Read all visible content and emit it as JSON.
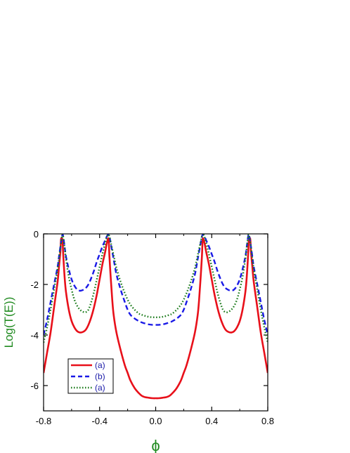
{
  "chart_data": {
    "type": "line",
    "xlabel": "ϕ",
    "ylabel": "Log(T(E))",
    "xlim": [
      -0.8,
      0.8
    ],
    "ylim": [
      -7.0,
      0.0
    ],
    "xticks": [
      -0.8,
      -0.4,
      0.0,
      0.4,
      0.8
    ],
    "xtick_labels": [
      "-0.8",
      "-0.4",
      "0.0",
      "0.4",
      "0.8"
    ],
    "yticks": [
      -6,
      -4,
      -2,
      0
    ],
    "ytick_labels": [
      "-6",
      "-4",
      "-2",
      "0"
    ],
    "label_color": "#1f8a1f",
    "legend_position": "bottom-left",
    "series": [
      {
        "name": "(a)",
        "color": "#e8101a",
        "dash": "solid",
        "x": [
          -0.8,
          -0.775,
          -0.75,
          -0.725,
          -0.7,
          -0.69,
          -0.68,
          -0.675,
          -0.665,
          -0.66,
          -0.65,
          -0.64,
          -0.62,
          -0.6,
          -0.58,
          -0.56,
          -0.54,
          -0.52,
          -0.5,
          -0.48,
          -0.46,
          -0.44,
          -0.42,
          -0.4,
          -0.38,
          -0.36,
          -0.35,
          -0.34,
          -0.335,
          -0.33,
          -0.32,
          -0.31,
          -0.3,
          -0.28,
          -0.25,
          -0.22,
          -0.2,
          -0.18,
          -0.15,
          -0.12,
          -0.1,
          -0.08,
          -0.05,
          -0.02,
          0.0,
          0.02,
          0.05,
          0.08,
          0.1,
          0.12,
          0.15,
          0.18,
          0.2,
          0.22,
          0.25,
          0.28,
          0.3,
          0.31,
          0.32,
          0.33,
          0.335,
          0.34,
          0.35,
          0.36,
          0.38,
          0.4,
          0.42,
          0.44,
          0.46,
          0.48,
          0.5,
          0.52,
          0.54,
          0.56,
          0.58,
          0.6,
          0.62,
          0.64,
          0.65,
          0.66,
          0.665,
          0.675,
          0.68,
          0.69,
          0.7,
          0.725,
          0.75,
          0.775,
          0.8
        ],
        "y": [
          -5.5,
          -4.7,
          -3.9,
          -2.9,
          -1.9,
          -1.3,
          -0.7,
          -0.2,
          -0.25,
          -0.8,
          -1.7,
          -2.3,
          -3.0,
          -3.45,
          -3.7,
          -3.85,
          -3.9,
          -3.88,
          -3.8,
          -3.6,
          -3.3,
          -2.9,
          -2.4,
          -1.8,
          -1.2,
          -0.7,
          -0.4,
          -0.2,
          -0.25,
          -0.9,
          -1.8,
          -2.6,
          -3.2,
          -3.9,
          -4.6,
          -5.2,
          -5.5,
          -5.8,
          -6.1,
          -6.3,
          -6.4,
          -6.45,
          -6.48,
          -6.5,
          -6.5,
          -6.5,
          -6.48,
          -6.45,
          -6.4,
          -6.3,
          -6.1,
          -5.8,
          -5.5,
          -5.2,
          -4.6,
          -3.9,
          -3.2,
          -2.6,
          -1.8,
          -0.9,
          -0.25,
          -0.2,
          -0.4,
          -0.7,
          -1.2,
          -1.8,
          -2.4,
          -2.9,
          -3.3,
          -3.6,
          -3.8,
          -3.88,
          -3.9,
          -3.85,
          -3.7,
          -3.45,
          -3.0,
          -2.3,
          -1.7,
          -0.8,
          -0.25,
          -0.2,
          -0.7,
          -1.3,
          -1.9,
          -2.9,
          -3.9,
          -4.7,
          -5.5
        ]
      },
      {
        "name": "(b)",
        "color": "#1a1ae6",
        "dash": "dashed",
        "x": [
          -0.8,
          -0.775,
          -0.75,
          -0.725,
          -0.7,
          -0.69,
          -0.68,
          -0.67,
          -0.665,
          -0.66,
          -0.65,
          -0.64,
          -0.62,
          -0.6,
          -0.58,
          -0.56,
          -0.54,
          -0.52,
          -0.5,
          -0.48,
          -0.46,
          -0.44,
          -0.42,
          -0.4,
          -0.38,
          -0.36,
          -0.35,
          -0.34,
          -0.33,
          -0.32,
          -0.3,
          -0.28,
          -0.25,
          -0.22,
          -0.2,
          -0.18,
          -0.15,
          -0.12,
          -0.1,
          -0.05,
          0.0,
          0.05,
          0.1,
          0.12,
          0.15,
          0.18,
          0.2,
          0.22,
          0.25,
          0.28,
          0.3,
          0.32,
          0.33,
          0.34,
          0.35,
          0.36,
          0.38,
          0.4,
          0.42,
          0.44,
          0.46,
          0.48,
          0.5,
          0.52,
          0.54,
          0.56,
          0.58,
          0.6,
          0.62,
          0.64,
          0.65,
          0.66,
          0.665,
          0.67,
          0.68,
          0.69,
          0.7,
          0.725,
          0.75,
          0.775,
          0.8
        ],
        "y": [
          -4.0,
          -3.4,
          -2.7,
          -2.0,
          -1.3,
          -0.9,
          -0.5,
          -0.15,
          -0.02,
          -0.1,
          -0.5,
          -0.9,
          -1.4,
          -1.8,
          -2.05,
          -2.2,
          -2.25,
          -2.22,
          -2.15,
          -2.0,
          -1.75,
          -1.45,
          -1.1,
          -0.8,
          -0.5,
          -0.25,
          -0.12,
          -0.03,
          -0.1,
          -0.4,
          -1.0,
          -1.6,
          -2.2,
          -2.7,
          -3.0,
          -3.2,
          -3.35,
          -3.45,
          -3.5,
          -3.58,
          -3.6,
          -3.58,
          -3.5,
          -3.45,
          -3.35,
          -3.2,
          -3.0,
          -2.7,
          -2.2,
          -1.6,
          -1.0,
          -0.4,
          -0.1,
          -0.03,
          -0.12,
          -0.25,
          -0.5,
          -0.8,
          -1.1,
          -1.45,
          -1.75,
          -2.0,
          -2.15,
          -2.22,
          -2.25,
          -2.2,
          -2.05,
          -1.8,
          -1.4,
          -0.9,
          -0.5,
          -0.1,
          -0.02,
          -0.15,
          -0.5,
          -0.9,
          -1.3,
          -2.0,
          -2.7,
          -3.4,
          -4.0
        ]
      },
      {
        "name": "(a)",
        "color": "#1a7a1a",
        "dash": "dotted",
        "x": [
          -0.8,
          -0.775,
          -0.75,
          -0.725,
          -0.7,
          -0.69,
          -0.68,
          -0.67,
          -0.665,
          -0.66,
          -0.65,
          -0.64,
          -0.62,
          -0.6,
          -0.58,
          -0.56,
          -0.54,
          -0.52,
          -0.5,
          -0.48,
          -0.46,
          -0.44,
          -0.42,
          -0.4,
          -0.38,
          -0.36,
          -0.35,
          -0.34,
          -0.33,
          -0.32,
          -0.3,
          -0.28,
          -0.25,
          -0.22,
          -0.2,
          -0.18,
          -0.15,
          -0.12,
          -0.1,
          -0.05,
          0.0,
          0.05,
          0.1,
          0.12,
          0.15,
          0.18,
          0.2,
          0.22,
          0.25,
          0.28,
          0.3,
          0.32,
          0.33,
          0.34,
          0.35,
          0.36,
          0.38,
          0.4,
          0.42,
          0.44,
          0.46,
          0.48,
          0.5,
          0.52,
          0.54,
          0.56,
          0.58,
          0.6,
          0.62,
          0.64,
          0.65,
          0.66,
          0.665,
          0.67,
          0.68,
          0.69,
          0.7,
          0.725,
          0.75,
          0.775,
          0.8
        ],
        "y": [
          -4.3,
          -3.7,
          -3.0,
          -2.2,
          -1.4,
          -1.0,
          -0.55,
          -0.15,
          -0.02,
          -0.1,
          -0.55,
          -1.0,
          -1.7,
          -2.2,
          -2.6,
          -2.85,
          -3.0,
          -3.08,
          -3.1,
          -3.0,
          -2.7,
          -2.3,
          -1.8,
          -1.3,
          -0.8,
          -0.35,
          -0.15,
          -0.03,
          -0.1,
          -0.35,
          -0.85,
          -1.35,
          -1.9,
          -2.35,
          -2.6,
          -2.8,
          -3.0,
          -3.15,
          -3.2,
          -3.28,
          -3.3,
          -3.28,
          -3.2,
          -3.15,
          -3.0,
          -2.8,
          -2.6,
          -2.35,
          -1.9,
          -1.35,
          -0.85,
          -0.35,
          -0.1,
          -0.03,
          -0.15,
          -0.35,
          -0.8,
          -1.3,
          -1.8,
          -2.3,
          -2.7,
          -3.0,
          -3.1,
          -3.08,
          -3.0,
          -2.85,
          -2.6,
          -2.2,
          -1.7,
          -1.0,
          -0.55,
          -0.1,
          -0.02,
          -0.15,
          -0.55,
          -1.0,
          -1.4,
          -2.2,
          -3.0,
          -3.7,
          -4.3
        ]
      }
    ]
  }
}
